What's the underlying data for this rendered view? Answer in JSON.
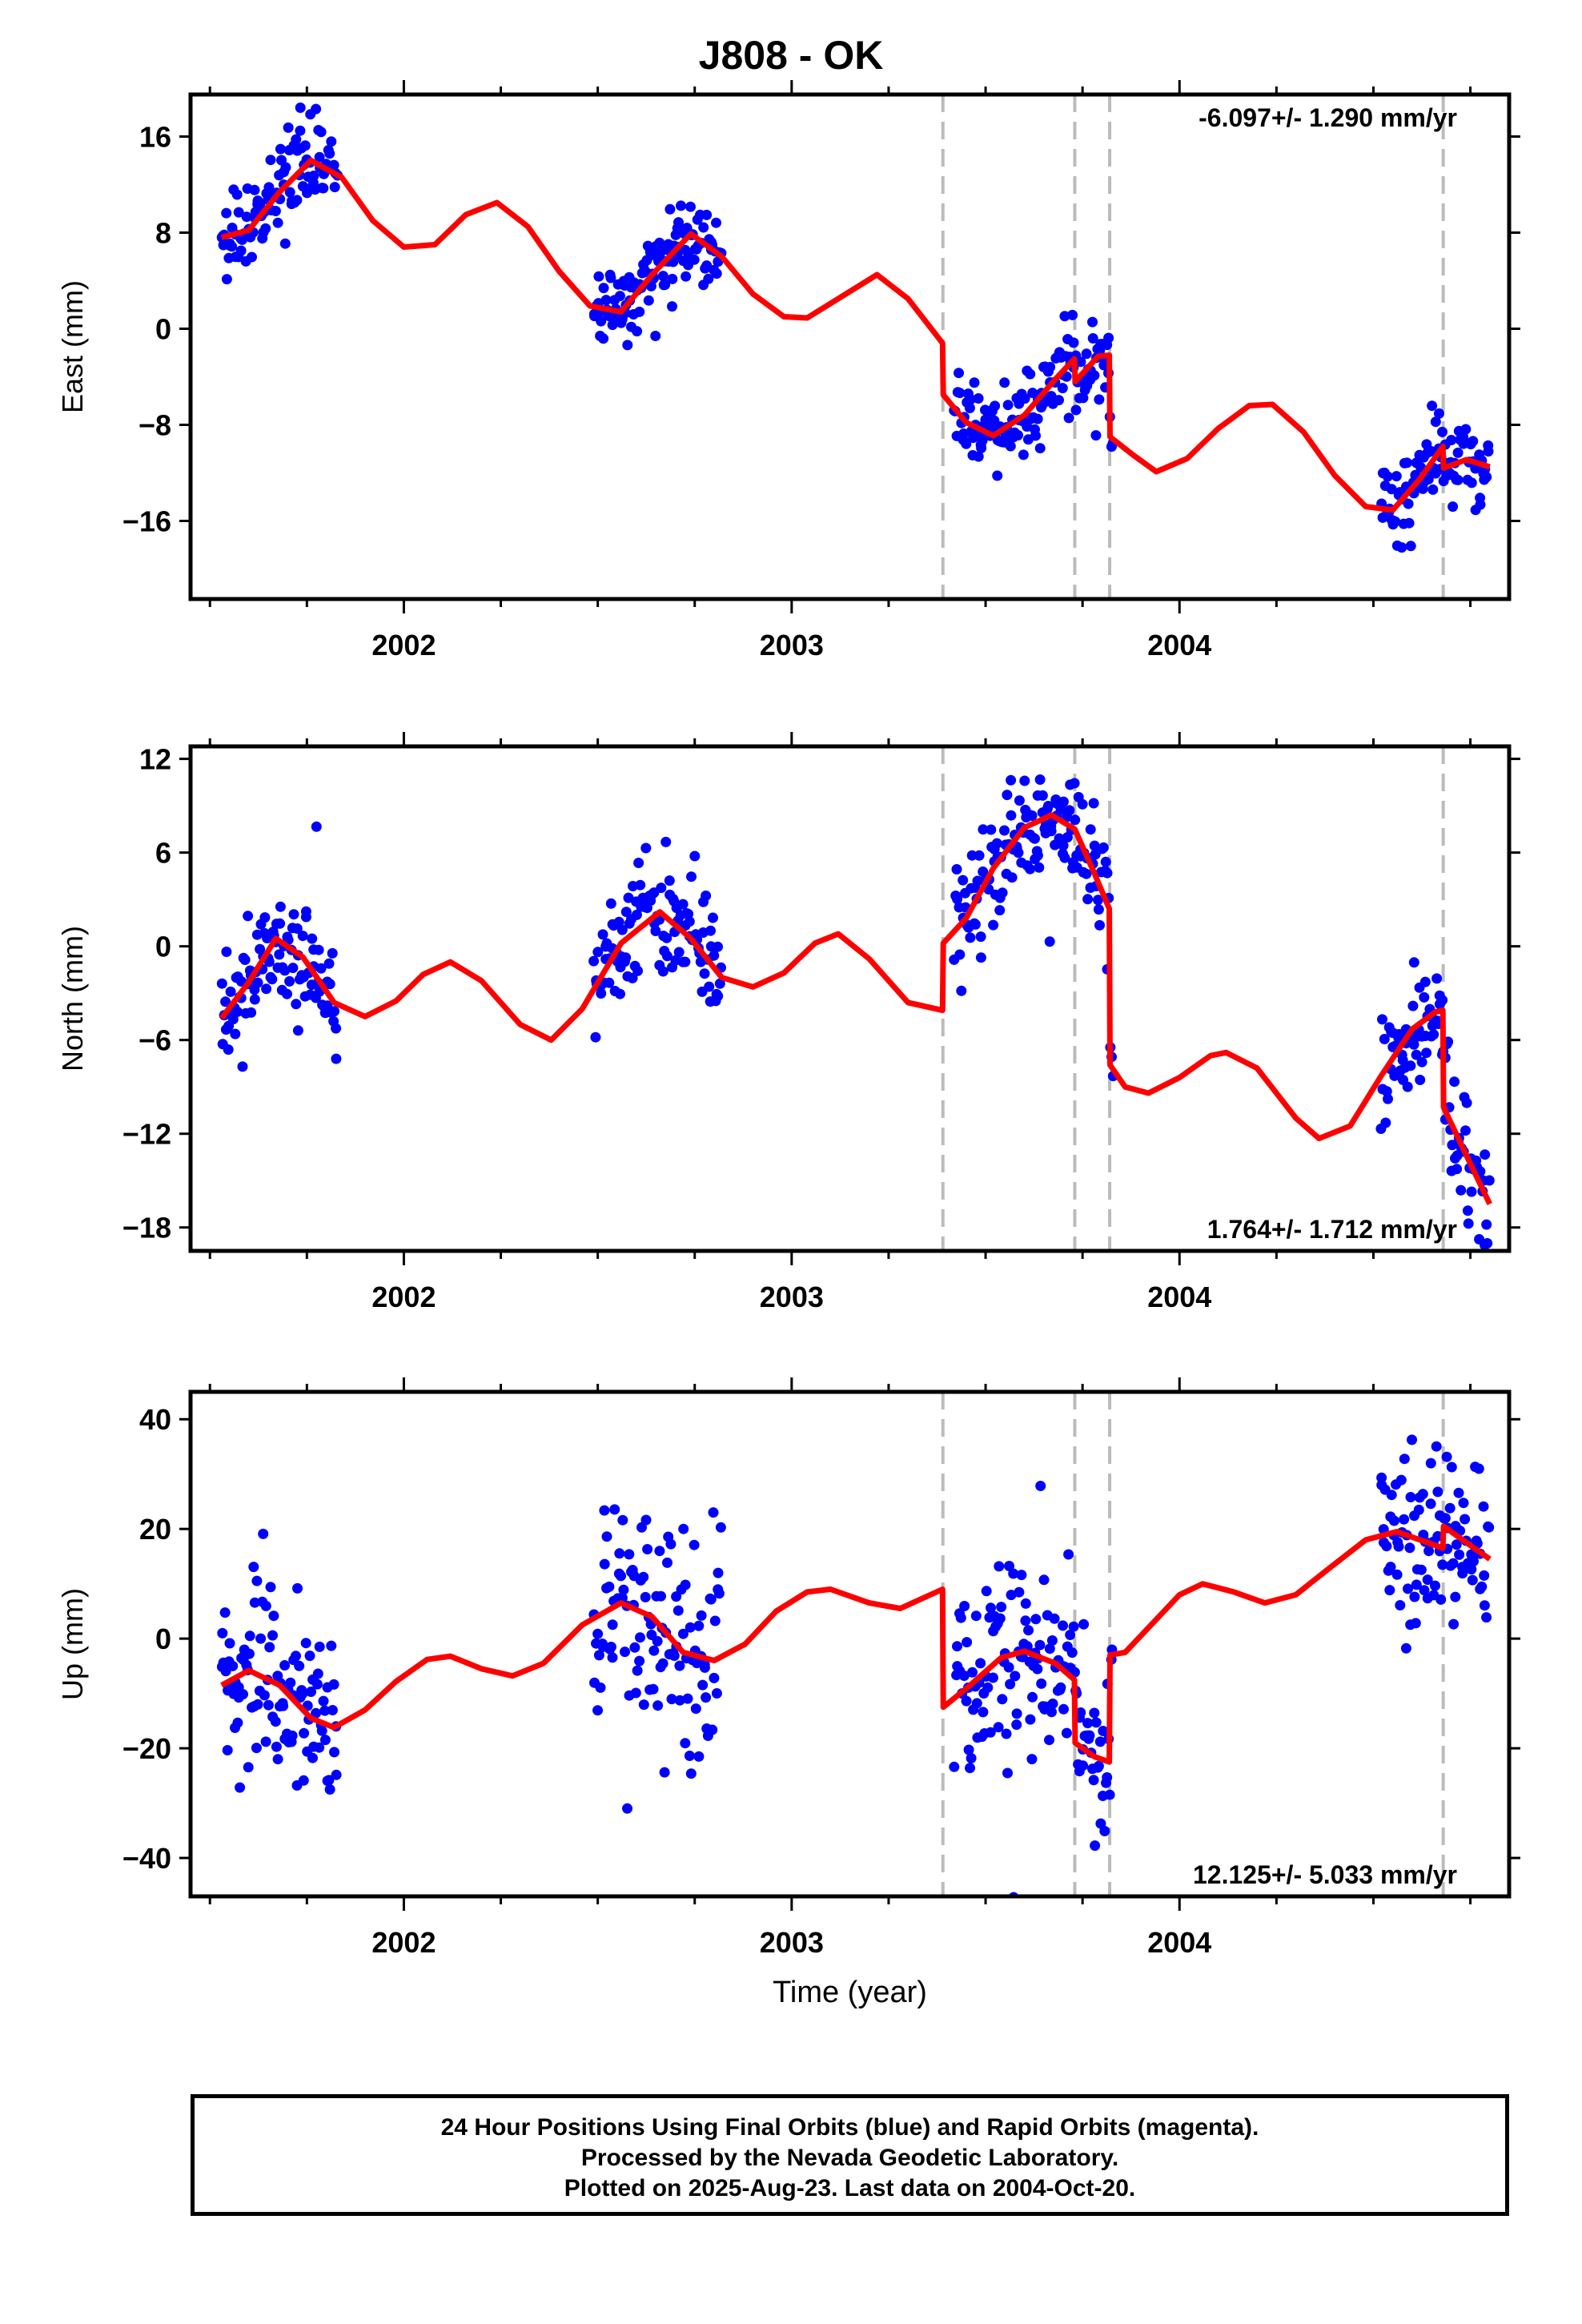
{
  "title": "J808 - OK",
  "footer": {
    "line1": "24 Hour Positions Using Final Orbits (blue) and Rapid Orbits (magenta).",
    "line2": "Processed by the Nevada Geodetic Laboratory.",
    "line3": "Plotted on 2025-Aug-23. Last data on 2004-Oct-20."
  },
  "colors": {
    "final_orbits": "#0000ff",
    "model": "#ff0000",
    "steps": "#bbbbbb",
    "axis": "#000000"
  },
  "chart_data": [
    {
      "type": "scatter",
      "component": "East",
      "ylabel": "East (mm)",
      "rate_text": "-6.097+/- 1.290 mm/yr",
      "rate_position": "top-right",
      "xlim": [
        2001.45,
        2004.85
      ],
      "ylim": [
        -22.5,
        19.5
      ],
      "xticks": [
        2002,
        2003,
        2004
      ],
      "xtick_labels": [
        "2002",
        "2003",
        "2004"
      ],
      "yticks": [
        -16,
        -8,
        0,
        8,
        16
      ],
      "ytick_labels": [
        "−16",
        "−8",
        "0",
        "8",
        "16"
      ],
      "step_lines": [
        2003.39,
        2003.73,
        2003.82,
        2004.68
      ],
      "data_segments": [
        [
          2001.53,
          2001.83
        ],
        [
          2002.49,
          2002.82
        ],
        [
          2003.42,
          2003.83
        ],
        [
          2004.52,
          2004.8
        ]
      ],
      "model": [
        [
          2001.53,
          7.6
        ],
        [
          2001.6,
          8.2
        ],
        [
          2001.68,
          11.4
        ],
        [
          2001.76,
          14.0
        ],
        [
          2001.84,
          12.6
        ],
        [
          2001.92,
          9.0
        ],
        [
          2002.0,
          6.8
        ],
        [
          2002.08,
          7.0
        ],
        [
          2002.16,
          9.5
        ],
        [
          2002.24,
          10.5
        ],
        [
          2002.32,
          8.5
        ],
        [
          2002.4,
          4.8
        ],
        [
          2002.48,
          1.9
        ],
        [
          2002.56,
          1.4
        ],
        [
          2002.64,
          4.5
        ],
        [
          2002.74,
          7.9
        ],
        [
          2002.82,
          6.0
        ],
        [
          2002.9,
          2.9
        ],
        [
          2002.98,
          1.0
        ],
        [
          2003.04,
          0.9
        ],
        [
          2003.12,
          2.5
        ],
        [
          2003.22,
          4.5
        ],
        [
          2003.3,
          2.5
        ],
        [
          2003.389,
          -1.2
        ],
        [
          2003.391,
          -5.5
        ],
        [
          2003.45,
          -7.8
        ],
        [
          2003.52,
          -8.9
        ],
        [
          2003.6,
          -7.2
        ],
        [
          2003.68,
          -4.2
        ],
        [
          2003.729,
          -2.5
        ],
        [
          2003.731,
          -4.4
        ],
        [
          2003.79,
          -2.3
        ],
        [
          2003.819,
          -2.2
        ],
        [
          2003.821,
          -9.0
        ],
        [
          2003.88,
          -10.5
        ],
        [
          2003.94,
          -11.9
        ],
        [
          2004.02,
          -10.8
        ],
        [
          2004.1,
          -8.3
        ],
        [
          2004.18,
          -6.4
        ],
        [
          2004.24,
          -6.3
        ],
        [
          2004.32,
          -8.6
        ],
        [
          2004.4,
          -12.2
        ],
        [
          2004.48,
          -14.8
        ],
        [
          2004.55,
          -15.1
        ],
        [
          2004.62,
          -12.5
        ],
        [
          2004.679,
          -9.8
        ],
        [
          2004.681,
          -11.6
        ],
        [
          2004.74,
          -10.9
        ],
        [
          2004.8,
          -11.5
        ]
      ],
      "noise_sd": 1.6
    },
    {
      "type": "scatter",
      "component": "North",
      "ylabel": "North (mm)",
      "rate_text": "1.764+/- 1.712 mm/yr",
      "rate_position": "bottom-right",
      "xlim": [
        2001.45,
        2004.85
      ],
      "ylim": [
        -19.5,
        12.8
      ],
      "xticks": [
        2002,
        2003,
        2004
      ],
      "xtick_labels": [
        "2002",
        "2003",
        "2004"
      ],
      "yticks": [
        -18,
        -12,
        -6,
        0,
        6,
        12
      ],
      "ytick_labels": [
        "−18",
        "−12",
        "−6",
        "0",
        "6",
        "12"
      ],
      "step_lines": [
        2003.39,
        2003.73,
        2003.82,
        2004.68
      ],
      "data_segments": [
        [
          2001.53,
          2001.83
        ],
        [
          2002.49,
          2002.82
        ],
        [
          2003.42,
          2003.83
        ],
        [
          2004.52,
          2004.8
        ]
      ],
      "model": [
        [
          2001.53,
          -4.6
        ],
        [
          2001.6,
          -2.3
        ],
        [
          2001.67,
          0.5
        ],
        [
          2001.74,
          -0.7
        ],
        [
          2001.82,
          -3.6
        ],
        [
          2001.9,
          -4.5
        ],
        [
          2001.98,
          -3.5
        ],
        [
          2002.05,
          -1.8
        ],
        [
          2002.12,
          -1.0
        ],
        [
          2002.2,
          -2.2
        ],
        [
          2002.3,
          -5.0
        ],
        [
          2002.38,
          -6.0
        ],
        [
          2002.46,
          -4.0
        ],
        [
          2002.56,
          0.2
        ],
        [
          2002.66,
          2.2
        ],
        [
          2002.74,
          0.5
        ],
        [
          2002.82,
          -2.0
        ],
        [
          2002.9,
          -2.6
        ],
        [
          2002.98,
          -1.7
        ],
        [
          2003.06,
          0.2
        ],
        [
          2003.12,
          0.8
        ],
        [
          2003.2,
          -0.8
        ],
        [
          2003.3,
          -3.6
        ],
        [
          2003.389,
          -4.1
        ],
        [
          2003.391,
          0.2
        ],
        [
          2003.45,
          1.8
        ],
        [
          2003.52,
          5.0
        ],
        [
          2003.6,
          7.6
        ],
        [
          2003.67,
          8.4
        ],
        [
          2003.73,
          7.5
        ],
        [
          2003.78,
          4.7
        ],
        [
          2003.819,
          2.4
        ],
        [
          2003.821,
          -7.6
        ],
        [
          2003.86,
          -9.0
        ],
        [
          2003.92,
          -9.4
        ],
        [
          2004.0,
          -8.4
        ],
        [
          2004.08,
          -7.0
        ],
        [
          2004.12,
          -6.8
        ],
        [
          2004.2,
          -7.8
        ],
        [
          2004.3,
          -11.0
        ],
        [
          2004.36,
          -12.3
        ],
        [
          2004.44,
          -11.5
        ],
        [
          2004.52,
          -8.3
        ],
        [
          2004.6,
          -5.3
        ],
        [
          2004.66,
          -4.2
        ],
        [
          2004.679,
          -4.1
        ],
        [
          2004.681,
          -10.3
        ],
        [
          2004.74,
          -13.4
        ],
        [
          2004.8,
          -16.5
        ]
      ],
      "noise_sd": 1.9
    },
    {
      "type": "scatter",
      "component": "Up",
      "ylabel": "Up (mm)",
      "xlabel": "Time (year)",
      "rate_text": "12.125+/- 5.033 mm/yr",
      "rate_position": "bottom-right",
      "xlim": [
        2001.45,
        2004.85
      ],
      "ylim": [
        -47,
        45
      ],
      "xticks": [
        2002,
        2003,
        2004
      ],
      "xtick_labels": [
        "2002",
        "2003",
        "2004"
      ],
      "yticks": [
        -40,
        -20,
        0,
        20,
        40
      ],
      "ytick_labels": [
        "−40",
        "−20",
        "0",
        "20",
        "40"
      ],
      "step_lines": [
        2003.39,
        2003.73,
        2003.82,
        2004.68
      ],
      "data_segments": [
        [
          2001.53,
          2001.83
        ],
        [
          2002.49,
          2002.82
        ],
        [
          2003.42,
          2003.83
        ],
        [
          2004.52,
          2004.8
        ]
      ],
      "model": [
        [
          2001.53,
          -8.5
        ],
        [
          2001.6,
          -5.8
        ],
        [
          2001.68,
          -8.5
        ],
        [
          2001.76,
          -14.5
        ],
        [
          2001.82,
          -16.2
        ],
        [
          2001.9,
          -13.0
        ],
        [
          2001.98,
          -7.8
        ],
        [
          2002.06,
          -3.8
        ],
        [
          2002.12,
          -3.2
        ],
        [
          2002.2,
          -5.5
        ],
        [
          2002.28,
          -6.8
        ],
        [
          2002.36,
          -4.5
        ],
        [
          2002.46,
          2.5
        ],
        [
          2002.56,
          6.5
        ],
        [
          2002.64,
          4.0
        ],
        [
          2002.72,
          -2.5
        ],
        [
          2002.8,
          -4.0
        ],
        [
          2002.88,
          -1.0
        ],
        [
          2002.96,
          5.0
        ],
        [
          2003.04,
          8.5
        ],
        [
          2003.1,
          9.0
        ],
        [
          2003.2,
          6.5
        ],
        [
          2003.28,
          5.5
        ],
        [
          2003.389,
          9.0
        ],
        [
          2003.391,
          -12.5
        ],
        [
          2003.46,
          -8.5
        ],
        [
          2003.54,
          -3.5
        ],
        [
          2003.6,
          -2.3
        ],
        [
          2003.68,
          -4.5
        ],
        [
          2003.729,
          -7.5
        ],
        [
          2003.731,
          -19.0
        ],
        [
          2003.78,
          -21.5
        ],
        [
          2003.819,
          -22.5
        ],
        [
          2003.821,
          -3.0
        ],
        [
          2003.86,
          -2.5
        ],
        [
          2003.92,
          2.0
        ],
        [
          2004.0,
          8.0
        ],
        [
          2004.06,
          10.0
        ],
        [
          2004.14,
          8.5
        ],
        [
          2004.22,
          6.5
        ],
        [
          2004.3,
          8.0
        ],
        [
          2004.38,
          12.5
        ],
        [
          2004.48,
          18.0
        ],
        [
          2004.56,
          19.5
        ],
        [
          2004.64,
          17.5
        ],
        [
          2004.679,
          16.5
        ],
        [
          2004.681,
          20.5
        ],
        [
          2004.74,
          17.5
        ],
        [
          2004.8,
          14.5
        ]
      ],
      "noise_sd": 8.5
    }
  ]
}
